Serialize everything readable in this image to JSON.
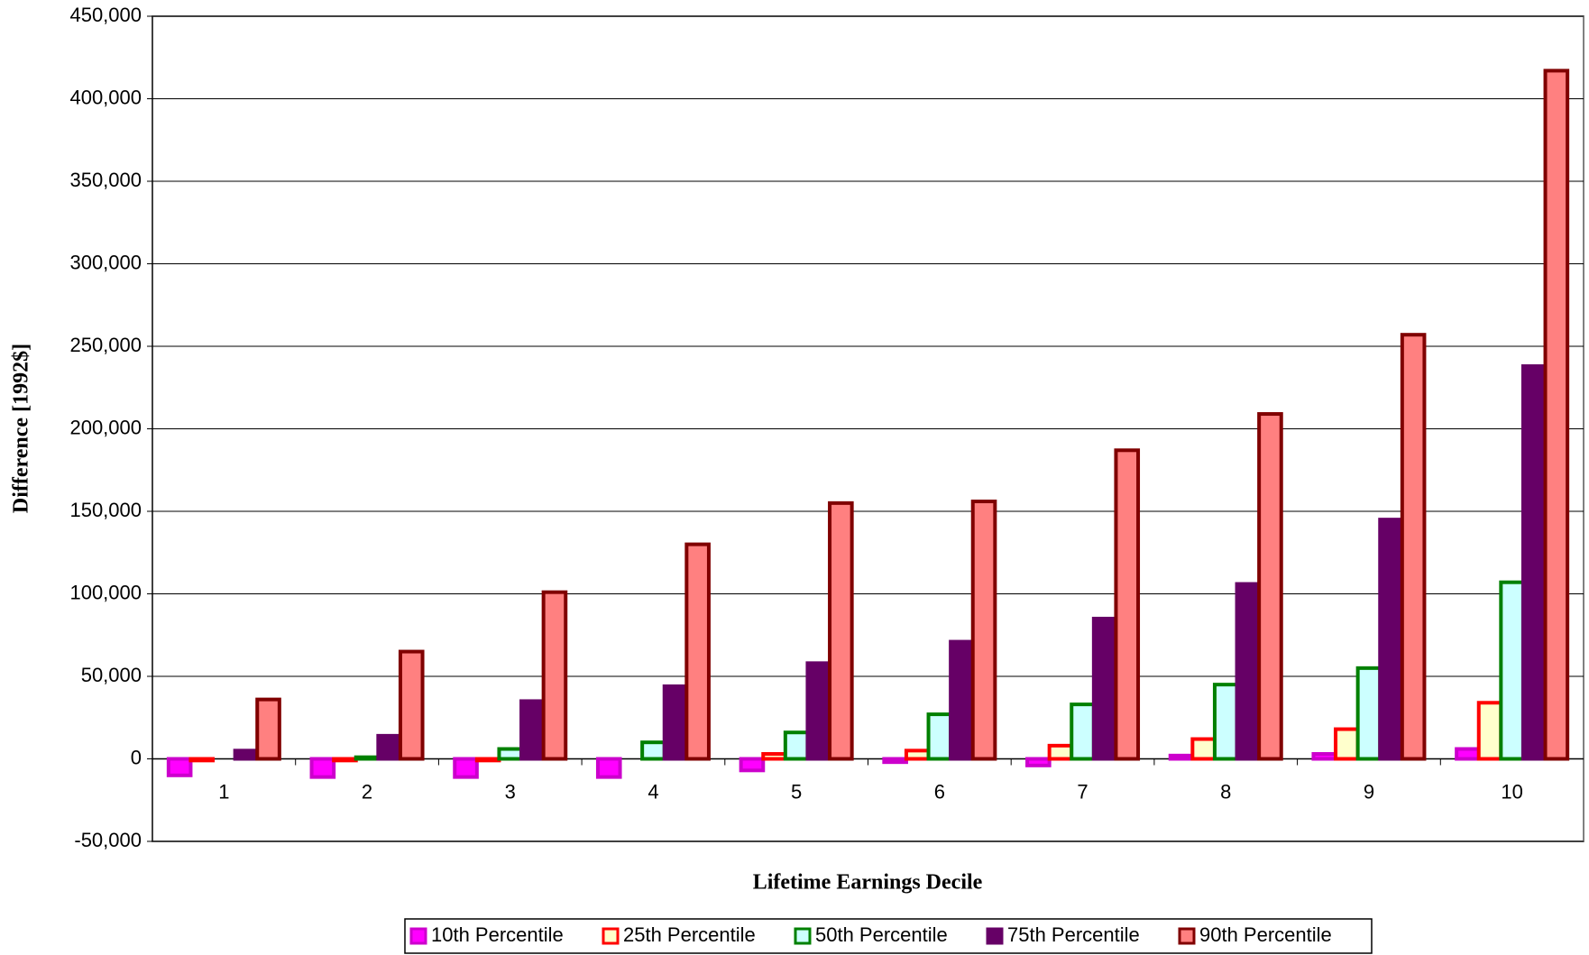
{
  "chart_data": {
    "type": "bar",
    "x_label": "Lifetime Earnings Decile",
    "y_label": "Difference [1992$]",
    "categories": [
      "1",
      "2",
      "3",
      "4",
      "5",
      "6",
      "7",
      "8",
      "9",
      "10"
    ],
    "series": [
      {
        "name": "10th Percentile",
        "color": "#ff00ff",
        "edgecolor": "#cc00cc",
        "values": [
          -10000,
          -11000,
          -11000,
          -11000,
          -7000,
          -2000,
          -4000,
          2000,
          3000,
          6000
        ]
      },
      {
        "name": "25th Percentile",
        "color": "#ffffcc",
        "edgecolor": "#ff0000",
        "values": [
          -1000,
          -1000,
          -1000,
          0,
          3000,
          5000,
          8000,
          12000,
          18000,
          34000
        ]
      },
      {
        "name": "50th Percentile",
        "color": "#ccffff",
        "edgecolor": "#008000",
        "values": [
          0,
          1000,
          6000,
          10000,
          16000,
          27000,
          33000,
          45000,
          55000,
          107000
        ]
      },
      {
        "name": "75th Percentile",
        "color": "#660066",
        "edgecolor": "#660066",
        "values": [
          5000,
          14000,
          35000,
          44000,
          58000,
          71000,
          85000,
          106000,
          145000,
          238000
        ]
      },
      {
        "name": "90th Percentile",
        "color": "#ff8080",
        "edgecolor": "#800000",
        "values": [
          36000,
          65000,
          101000,
          130000,
          155000,
          156000,
          187000,
          209000,
          257000,
          417000
        ]
      }
    ],
    "ylim": [
      -50000,
      450000
    ],
    "yticks": [
      {
        "value": -50000,
        "label": "-50,000"
      },
      0,
      {
        "value": 50000,
        "label": "50,000"
      },
      {
        "value": 100000,
        "label": "100,000"
      },
      {
        "value": 150000,
        "label": "150,000"
      },
      {
        "value": 200000,
        "label": "200,000"
      },
      {
        "value": 250000,
        "label": "250,000"
      },
      {
        "value": 300000,
        "label": "300,000"
      },
      {
        "value": 350000,
        "label": "350,000"
      },
      {
        "value": 400000,
        "label": "400,000"
      },
      {
        "value": 450000,
        "label": "450,000"
      }
    ],
    "grid": true,
    "legend": "bottom"
  }
}
